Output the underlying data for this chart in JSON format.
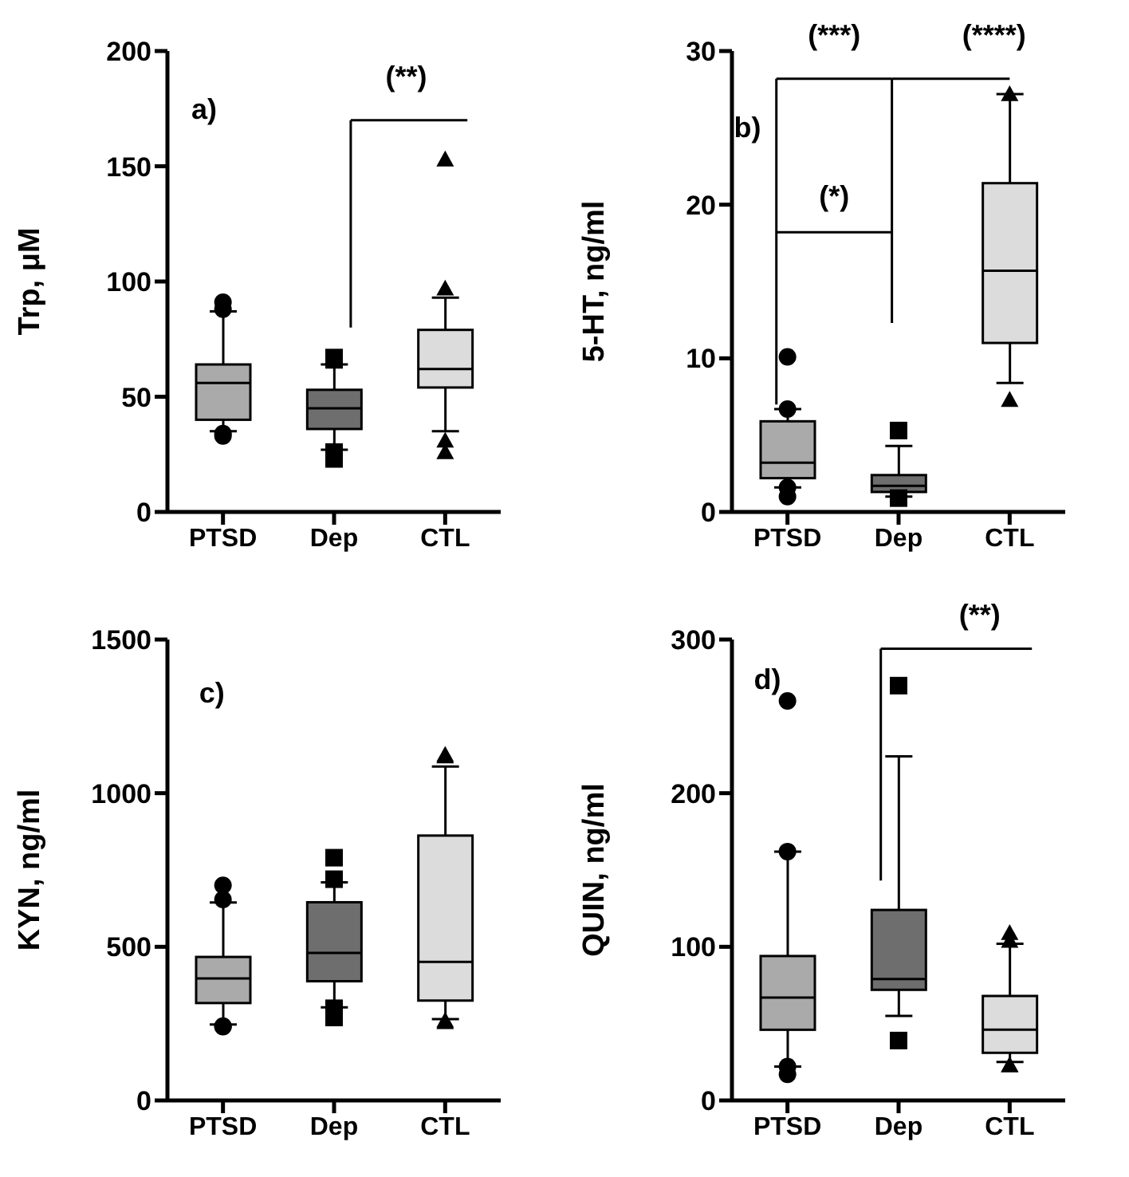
{
  "chart_data": [
    {
      "type": "box",
      "ylabel": "Trp, μM",
      "categories": [
        "PTSD",
        "Dep",
        "CTL"
      ],
      "ylim": [
        0,
        200
      ],
      "yticks": [
        0,
        50,
        100,
        150,
        200
      ],
      "grid": false,
      "legend": false,
      "annotations": [
        "a)",
        "(**)"
      ],
      "series": [
        {
          "color": "#aaaaaa",
          "marker": "circle",
          "boxes": [
            {
              "low": 35,
              "q1": 40,
              "median": 56,
              "q3": 64,
              "high": 87,
              "outliers": [
                88,
                91,
                33,
                34
              ]
            },
            null,
            null
          ]
        },
        {
          "color": "#6e6e6e",
          "marker": "square",
          "boxes": [
            null,
            {
              "low": 27,
              "q1": 36,
              "median": 45,
              "q3": 53,
              "high": 64,
              "outliers": [
                66,
                67,
                23,
                26
              ]
            },
            null
          ]
        },
        {
          "color": "#dcdcdc",
          "marker": "triangle",
          "boxes": [
            null,
            null,
            {
              "low": 35,
              "q1": 54,
              "median": 62,
              "q3": 79,
              "high": 93,
              "outliers": [
                153,
                97,
                26,
                31
              ]
            }
          ]
        }
      ]
    },
    {
      "type": "box",
      "ylabel": "5-HT, ng/ml",
      "categories": [
        "PTSD",
        "Dep",
        "CTL"
      ],
      "ylim": [
        0,
        30
      ],
      "yticks": [
        0,
        10,
        20,
        30
      ],
      "grid": false,
      "legend": false,
      "annotations": [
        "b)",
        "(***)",
        "(****)",
        "(*)"
      ],
      "series": [
        {
          "color": "#aaaaaa",
          "marker": "circle",
          "boxes": [
            {
              "low": 1.6,
              "q1": 2.2,
              "median": 3.2,
              "q3": 5.9,
              "high": 6.7,
              "outliers": [
                10.1,
                6.7,
                1.0,
                1.6
              ]
            },
            null,
            null
          ]
        },
        {
          "color": "#6e6e6e",
          "marker": "square",
          "boxes": [
            null,
            {
              "low": 1.0,
              "q1": 1.3,
              "median": 1.7,
              "q3": 2.4,
              "high": 4.3,
              "outliers": [
                5.3,
                0.9
              ]
            },
            null
          ]
        },
        {
          "color": "#dcdcdc",
          "marker": "triangle",
          "boxes": [
            null,
            null,
            {
              "low": 8.4,
              "q1": 11,
              "median": 15.7,
              "q3": 21.4,
              "high": 27.2,
              "outliers": [
                27.2,
                7.3
              ]
            }
          ]
        }
      ]
    },
    {
      "type": "box",
      "ylabel": "KYN, ng/ml",
      "categories": [
        "PTSD",
        "Dep",
        "CTL"
      ],
      "ylim": [
        0,
        1500
      ],
      "yticks": [
        0,
        500,
        1000,
        1500
      ],
      "grid": false,
      "legend": false,
      "annotations": [
        "c)"
      ],
      "series": [
        {
          "color": "#aaaaaa",
          "marker": "circle",
          "boxes": [
            {
              "low": 247,
              "q1": 317,
              "median": 397,
              "q3": 467,
              "high": 644,
              "outliers": [
                654,
                700,
                240,
                242
              ]
            },
            null,
            null
          ]
        },
        {
          "color": "#6e6e6e",
          "marker": "square",
          "boxes": [
            null,
            {
              "low": 303,
              "q1": 388,
              "median": 480,
              "q3": 645,
              "high": 710,
              "outliers": [
                790,
                720,
                270,
                300
              ]
            },
            null
          ]
        },
        {
          "color": "#dcdcdc",
          "marker": "triangle",
          "boxes": [
            null,
            null,
            {
              "low": 265,
              "q1": 325,
              "median": 451,
              "q3": 862,
              "high": 1087,
              "outliers": [
                1120,
                1125,
                255,
                260
              ]
            }
          ]
        }
      ]
    },
    {
      "type": "box",
      "ylabel": "QUIN, ng/ml",
      "categories": [
        "PTSD",
        "Dep",
        "CTL"
      ],
      "ylim": [
        0,
        300
      ],
      "yticks": [
        0,
        100,
        200,
        300
      ],
      "grid": false,
      "legend": false,
      "annotations": [
        "d)",
        "(**)"
      ],
      "series": [
        {
          "color": "#aaaaaa",
          "marker": "circle",
          "boxes": [
            {
              "low": 22,
              "q1": 46,
              "median": 67,
              "q3": 94,
              "high": 162,
              "outliers": [
                260,
                162,
                17,
                22
              ]
            },
            null,
            null
          ]
        },
        {
          "color": "#6e6e6e",
          "marker": "square",
          "boxes": [
            null,
            {
              "low": 55,
              "q1": 72,
              "median": 79,
              "q3": 124,
              "high": 224,
              "outliers": [
                270,
                39
              ]
            },
            null
          ]
        },
        {
          "color": "#dcdcdc",
          "marker": "triangle",
          "boxes": [
            null,
            null,
            {
              "low": 25,
              "q1": 31,
              "median": 46,
              "q3": 68,
              "high": 102,
              "outliers": [
                104,
                109,
                23,
                23
              ]
            }
          ]
        }
      ]
    }
  ]
}
